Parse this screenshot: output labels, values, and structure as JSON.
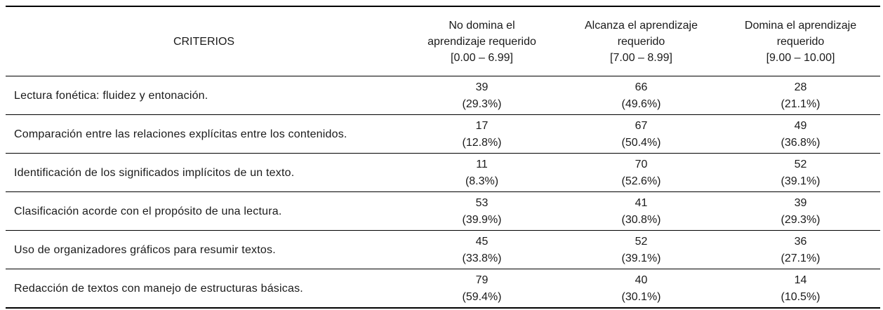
{
  "table": {
    "headers": {
      "criteria": "CRITERIOS",
      "level1": [
        "No domina el",
        "aprendizaje requerido",
        "[0.00 – 6.99]"
      ],
      "level2": [
        "Alcanza el aprendizaje",
        "requerido",
        "[7.00 – 8.99]"
      ],
      "level3": [
        "Domina el aprendizaje",
        "requerido",
        "[9.00 – 10.00]"
      ]
    },
    "rows": [
      {
        "criterion": "Lectura fonética: fluidez y entonación.",
        "level1": {
          "count": "39",
          "pct": "(29.3%)"
        },
        "level2": {
          "count": "66",
          "pct": "(49.6%)"
        },
        "level3": {
          "count": "28",
          "pct": "(21.1%)"
        }
      },
      {
        "criterion": "Comparación entre las relaciones explícitas entre los contenidos.",
        "level1": {
          "count": "17",
          "pct": "(12.8%)"
        },
        "level2": {
          "count": "67",
          "pct": "(50.4%)"
        },
        "level3": {
          "count": "49",
          "pct": "(36.8%)"
        }
      },
      {
        "criterion": "Identificación de los significados implícitos de un texto.",
        "level1": {
          "count": "11",
          "pct": "(8.3%)"
        },
        "level2": {
          "count": "70",
          "pct": "(52.6%)"
        },
        "level3": {
          "count": "52",
          "pct": "(39.1%)"
        }
      },
      {
        "criterion": "Clasificación acorde con el propósito de una lectura.",
        "level1": {
          "count": "53",
          "pct": "(39.9%)"
        },
        "level2": {
          "count": "41",
          "pct": "(30.8%)"
        },
        "level3": {
          "count": "39",
          "pct": "(29.3%)"
        }
      },
      {
        "criterion": "Uso de organizadores gráficos para resumir textos.",
        "level1": {
          "count": "45",
          "pct": "(33.8%)"
        },
        "level2": {
          "count": "52",
          "pct": "(39.1%)"
        },
        "level3": {
          "count": "36",
          "pct": "(27.1%)"
        }
      },
      {
        "criterion": "Redacción de textos con manejo de estructuras básicas.",
        "level1": {
          "count": "79",
          "pct": "(59.4%)"
        },
        "level2": {
          "count": "40",
          "pct": "(30.1%)"
        },
        "level3": {
          "count": "14",
          "pct": "(10.5%)"
        }
      }
    ]
  }
}
